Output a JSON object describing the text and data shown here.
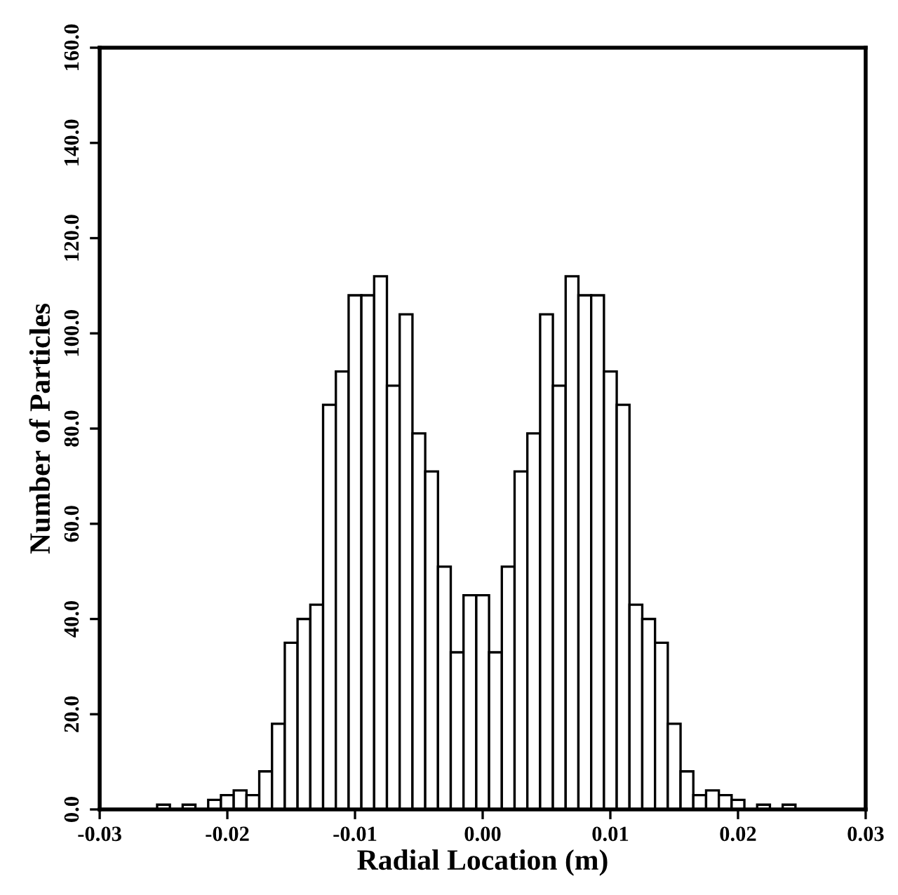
{
  "chart_data": {
    "type": "histogram",
    "xlabel": "Radial Location (m)",
    "ylabel": "Number of Particles",
    "color": "#ffffff",
    "bins": [
      -0.0255,
      -0.0245,
      -0.0235,
      -0.0225,
      -0.0215,
      -0.0205,
      -0.0195,
      -0.0185,
      -0.0175,
      -0.0165,
      -0.0155,
      -0.0145,
      -0.0135,
      -0.0125,
      -0.0115,
      -0.0105,
      -0.0095,
      -0.0085,
      -0.0075,
      -0.0065,
      -0.0055,
      -0.0045,
      -0.0035,
      -0.0025,
      -0.0015,
      -0.0005,
      0.0005,
      0.0015,
      0.0025,
      0.0035,
      0.0045,
      0.0055,
      0.0065,
      0.0075,
      0.0085,
      0.0095,
      0.0105,
      0.0115,
      0.0125,
      0.0135,
      0.0145,
      0.0155,
      0.0165,
      0.0175,
      0.0185,
      0.0195,
      0.0205,
      0.0215,
      0.0225,
      0.0235,
      0.0245
    ],
    "values": [
      1,
      0,
      1,
      0,
      2,
      3,
      4,
      3,
      8,
      18,
      35,
      40,
      43,
      85,
      92,
      108,
      108,
      112,
      89,
      104,
      79,
      71,
      51,
      33,
      45,
      45,
      33,
      51,
      71,
      79,
      104,
      89,
      112,
      108,
      108,
      92,
      85,
      43,
      40,
      35,
      18,
      8,
      3,
      4,
      3,
      2,
      0,
      1,
      0,
      1
    ],
    "xlim": [
      -0.03,
      0.03
    ],
    "xticks": [
      {
        "value": -0.03,
        "label": "-0.03"
      },
      {
        "value": -0.02,
        "label": "-0.02"
      },
      {
        "value": -0.01,
        "label": "-0.01"
      },
      {
        "value": 0,
        "label": "0.00"
      },
      {
        "value": 0.01,
        "label": "0.01"
      },
      {
        "value": 0.02,
        "label": "0.02"
      },
      {
        "value": 0.03,
        "label": "0.03"
      }
    ],
    "ylim": [
      0,
      160
    ],
    "yticks": [
      {
        "value": 0,
        "label": "0.0"
      },
      {
        "value": 20,
        "label": "20.0"
      },
      {
        "value": 40,
        "label": "40.0"
      },
      {
        "value": 60,
        "label": "60.0"
      },
      {
        "value": 80,
        "label": "80.0"
      },
      {
        "value": 100,
        "label": "100.0"
      },
      {
        "value": 120,
        "label": "120.0"
      },
      {
        "value": 140,
        "label": "140.0"
      },
      {
        "value": 160,
        "label": "160.0"
      }
    ],
    "grid": false
  }
}
